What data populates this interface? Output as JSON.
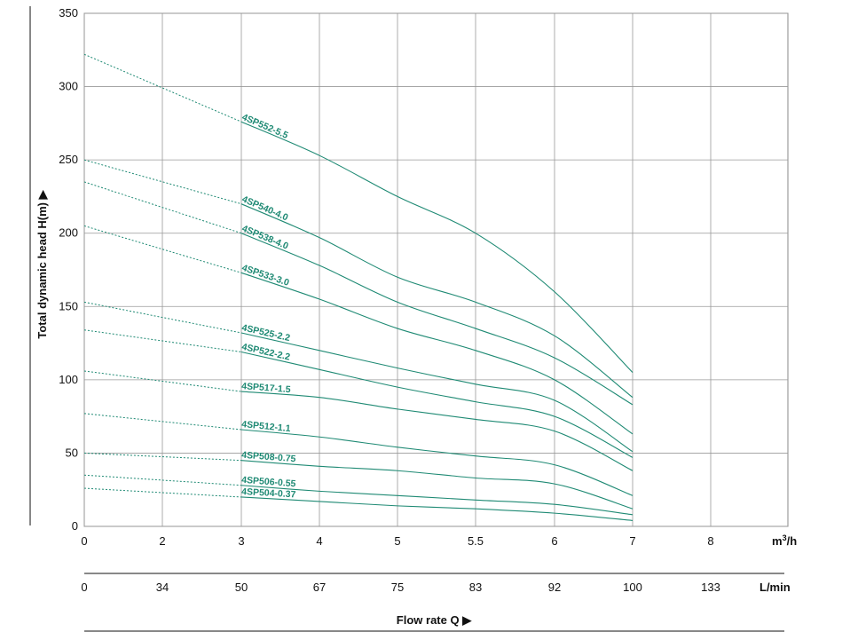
{
  "chart_data": {
    "type": "line",
    "title": "",
    "ylabel": "Total dynamic head H(m) ▶",
    "xlabel": "Flow rate Q ▶",
    "x_unit": "m3/h",
    "x2_unit": "L/min",
    "ylim": [
      0,
      350
    ],
    "xlim": [
      0,
      9
    ],
    "y_ticks": [
      "0",
      "50",
      "100",
      "150",
      "200",
      "250",
      "300",
      "350"
    ],
    "x_ticks": [
      "0",
      "2",
      "3",
      "4",
      "5",
      "5.5",
      "6",
      "7",
      "8"
    ],
    "x2_ticks": [
      "0",
      "34",
      "50",
      "67",
      "75",
      "83",
      "92",
      "100",
      "133"
    ],
    "grid": true,
    "colors": {
      "curve": "#1f8a74",
      "label": "#1f8a74",
      "grid": "#999999",
      "axis": "#111111"
    },
    "x": [
      3,
      4,
      5,
      5.5,
      6,
      7
    ],
    "series": [
      {
        "name": "4SP552-5.5",
        "values": [
          276,
          253,
          225,
          200,
          160,
          105
        ],
        "dotted": [
          [
            0,
            322
          ],
          [
            3,
            276
          ]
        ]
      },
      {
        "name": "4SP540-4.0",
        "values": [
          220,
          197,
          170,
          153,
          130,
          88
        ],
        "dotted": [
          [
            0,
            250
          ],
          [
            3,
            220
          ]
        ]
      },
      {
        "name": "4SP538-4.0",
        "values": [
          200,
          178,
          153,
          135,
          115,
          83
        ],
        "dotted": [
          [
            0,
            235
          ],
          [
            3,
            200
          ]
        ]
      },
      {
        "name": "4SP533-3.0",
        "values": [
          173,
          155,
          135,
          120,
          100,
          63
        ],
        "dotted": [
          [
            0,
            205
          ],
          [
            3,
            173
          ]
        ]
      },
      {
        "name": "4SP525-2.2",
        "values": [
          132,
          120,
          108,
          97,
          86,
          51
        ],
        "dotted": [
          [
            0,
            153
          ],
          [
            3,
            132
          ]
        ]
      },
      {
        "name": "4SP522-2.2",
        "values": [
          119,
          107,
          95,
          85,
          75,
          47
        ],
        "dotted": [
          [
            0,
            134
          ],
          [
            3,
            119
          ]
        ]
      },
      {
        "name": "4SP517-1.5",
        "values": [
          92,
          88,
          80,
          73,
          65,
          38
        ],
        "dotted": [
          [
            0,
            106
          ],
          [
            3,
            92
          ]
        ]
      },
      {
        "name": "4SP512-1.1",
        "values": [
          66,
          61,
          54,
          48,
          42,
          21
        ],
        "dotted": [
          [
            0,
            77
          ],
          [
            3,
            66
          ]
        ]
      },
      {
        "name": "4SP508-0.75",
        "values": [
          45,
          41,
          38,
          33,
          29,
          12
        ],
        "dotted": [
          [
            0,
            50
          ],
          [
            3,
            45
          ]
        ]
      },
      {
        "name": "4SP506-0.55",
        "values": [
          28,
          24,
          21,
          18,
          15,
          8
        ],
        "dotted": [
          [
            0,
            35
          ],
          [
            3,
            28
          ]
        ]
      },
      {
        "name": "4SP504-0.37",
        "values": [
          20,
          17,
          14,
          12,
          9,
          4
        ],
        "dotted": [
          [
            0,
            26
          ],
          [
            3,
            20
          ]
        ]
      }
    ]
  }
}
